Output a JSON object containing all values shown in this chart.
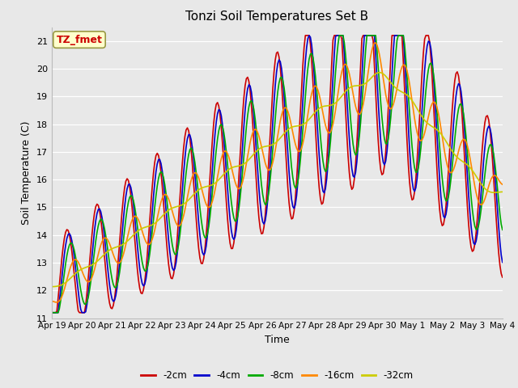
{
  "title": "Tonzi Soil Temperatures Set B",
  "xlabel": "Time",
  "ylabel": "Soil Temperature (C)",
  "ylim": [
    11.0,
    21.5
  ],
  "yticks": [
    11.0,
    12.0,
    13.0,
    14.0,
    15.0,
    16.0,
    17.0,
    18.0,
    19.0,
    20.0,
    21.0
  ],
  "xtick_labels": [
    "Apr 19",
    "Apr 20",
    "Apr 21",
    "Apr 22",
    "Apr 23",
    "Apr 24",
    "Apr 25",
    "Apr 26",
    "Apr 27",
    "Apr 28",
    "Apr 29",
    "Apr 30",
    "May 1",
    "May 2",
    "May 3",
    "May 4"
  ],
  "series_colors": [
    "#cc0000",
    "#0000cc",
    "#00aa00",
    "#ff8800",
    "#cccc00"
  ],
  "series_labels": [
    "-2cm",
    "-4cm",
    "-8cm",
    "-16cm",
    "-32cm"
  ],
  "line_width": 1.2,
  "bg_color": "#e8e8e8",
  "annotation_text": "TZ_fmet",
  "annotation_color": "#cc0000",
  "annotation_bg": "#ffffcc",
  "annotation_border": "#999944"
}
